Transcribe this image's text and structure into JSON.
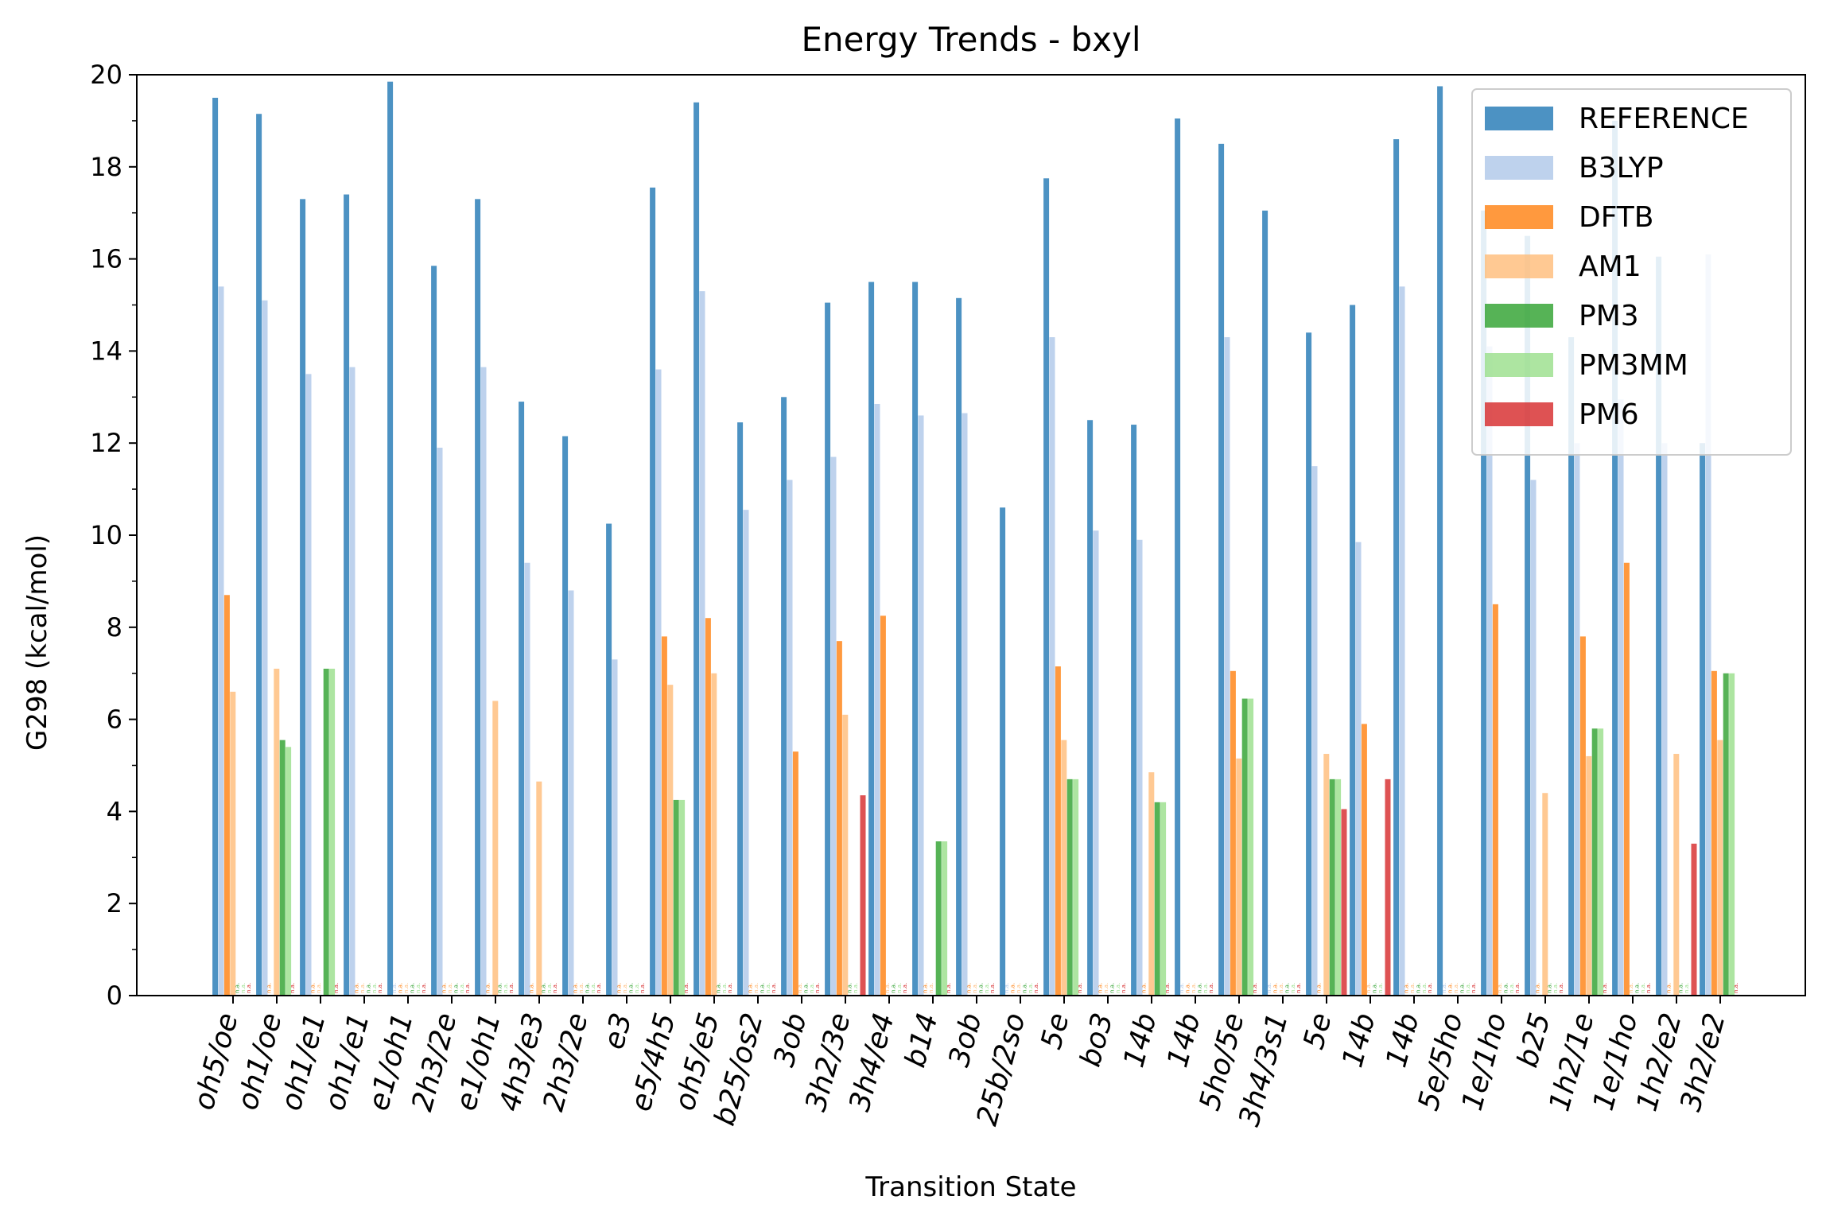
{
  "chart_data": {
    "type": "bar",
    "title": "Energy Trends - bxyl",
    "xlabel": "Transition State",
    "ylabel": "G298 (kcal/mol)",
    "ylim": [
      0,
      20
    ],
    "yticks": [
      "0",
      "2",
      "4",
      "6",
      "8",
      "10",
      "12",
      "14",
      "16",
      "18",
      "20"
    ],
    "grid": false,
    "legend_position": "top-right",
    "na_label": "n.a.",
    "categories": [
      "oh5/oe",
      "oh1/oe",
      "oh1/e1",
      "oh1/e1",
      "e1/oh1",
      "2h3/2e",
      "e1/oh1",
      "4h3/e3",
      "2h3/2e",
      "e3",
      "e5/4h5",
      "oh5/e5",
      "b25/os2",
      "3ob",
      "3h2/3e",
      "3h4/e4",
      "b14",
      "3ob",
      "25b/2so",
      "5e",
      "bo3",
      "14b",
      "14b",
      "5ho/5e",
      "3h4/3s1",
      "5e",
      "14b",
      "14b",
      "5e/5ho",
      "1e/1ho",
      "b25",
      "1h2/1e",
      "1e/1ho",
      "1h2/e2",
      "3h2/e2"
    ],
    "series": [
      {
        "name": "REFERENCE",
        "color": "#1f77b4",
        "values": [
          19.5,
          19.15,
          17.3,
          17.4,
          19.85,
          15.85,
          17.3,
          12.9,
          12.15,
          10.25,
          17.55,
          19.4,
          12.45,
          13.0,
          15.05,
          15.5,
          15.5,
          15.15,
          10.6,
          17.75,
          12.5,
          12.4,
          19.05,
          18.5,
          17.05,
          14.4,
          15.0,
          18.6,
          19.75,
          17.05,
          16.5,
          14.3,
          19.0,
          16.05,
          12.0
        ]
      },
      {
        "name": "B3LYP",
        "color": "#aec7e8",
        "values": [
          15.4,
          15.1,
          13.5,
          13.65,
          null,
          11.9,
          13.65,
          9.4,
          8.8,
          7.3,
          13.6,
          15.3,
          10.55,
          11.2,
          11.7,
          12.85,
          12.6,
          12.65,
          null,
          14.3,
          10.1,
          9.9,
          null,
          14.3,
          null,
          11.5,
          9.85,
          15.4,
          null,
          14.1,
          11.2,
          12.0,
          12.95,
          12.0,
          16.1
        ]
      },
      {
        "name": "DFTB",
        "color": "#ff7f0e",
        "values": [
          8.7,
          null,
          null,
          null,
          null,
          null,
          null,
          null,
          null,
          null,
          7.8,
          8.2,
          null,
          5.3,
          7.7,
          8.25,
          null,
          null,
          null,
          7.15,
          null,
          null,
          null,
          7.05,
          null,
          null,
          5.9,
          null,
          null,
          8.5,
          null,
          7.8,
          9.4,
          null,
          7.05
        ]
      },
      {
        "name": "AM1",
        "color": "#ffbb78",
        "values": [
          6.6,
          7.1,
          null,
          null,
          null,
          null,
          6.4,
          4.65,
          null,
          null,
          6.75,
          7.0,
          null,
          null,
          6.1,
          null,
          null,
          null,
          null,
          5.55,
          null,
          4.85,
          null,
          5.15,
          null,
          5.25,
          null,
          null,
          null,
          null,
          4.4,
          5.2,
          null,
          5.25,
          5.55
        ]
      },
      {
        "name": "PM3",
        "color": "#2ca02c",
        "values": [
          null,
          5.55,
          7.1,
          null,
          null,
          null,
          null,
          null,
          null,
          null,
          4.25,
          null,
          null,
          null,
          null,
          null,
          3.35,
          null,
          null,
          4.7,
          null,
          4.2,
          null,
          6.45,
          null,
          4.7,
          null,
          null,
          null,
          null,
          null,
          5.8,
          null,
          null,
          7.0
        ]
      },
      {
        "name": "PM3MM",
        "color": "#98df8a",
        "values": [
          null,
          5.4,
          7.1,
          null,
          null,
          null,
          null,
          null,
          null,
          null,
          4.25,
          null,
          null,
          null,
          null,
          null,
          3.35,
          null,
          null,
          4.7,
          null,
          4.2,
          null,
          6.45,
          null,
          4.7,
          null,
          null,
          null,
          null,
          null,
          5.8,
          null,
          null,
          7.0
        ]
      },
      {
        "name": "PM6",
        "color": "#d62728",
        "values": [
          null,
          null,
          null,
          null,
          null,
          null,
          null,
          null,
          null,
          null,
          null,
          null,
          null,
          null,
          4.35,
          null,
          null,
          null,
          null,
          null,
          null,
          null,
          null,
          null,
          null,
          4.05,
          4.7,
          null,
          null,
          null,
          null,
          null,
          null,
          3.3,
          null
        ]
      }
    ]
  }
}
